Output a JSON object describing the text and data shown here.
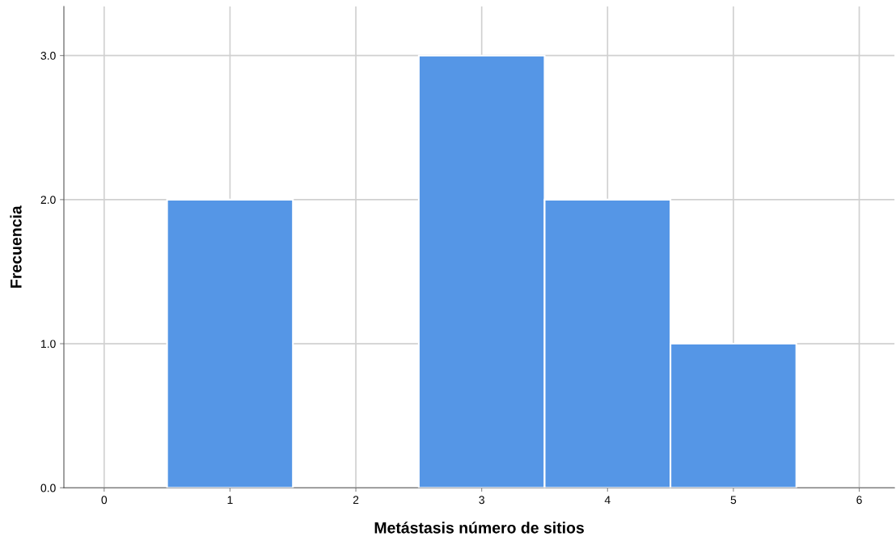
{
  "chart_data": {
    "type": "histogram",
    "xlabel": "Metástasis número de sitios",
    "ylabel": "Frecuencia",
    "bins": [
      0.5,
      1.5,
      2.5,
      3.5,
      4.5,
      5.5
    ],
    "values": [
      2,
      0,
      3,
      2,
      1
    ],
    "color": "#5596e6",
    "xlim": [
      -0.32,
      6.28
    ],
    "xticks": [
      0,
      1,
      2,
      3,
      4,
      5,
      6
    ],
    "ylim": [
      0,
      3.34
    ],
    "yticks": [
      {
        "value": 0,
        "label": "0.0"
      },
      {
        "value": 1,
        "label": "1.0"
      },
      {
        "value": 2,
        "label": "2.0"
      },
      {
        "value": 3,
        "label": "3.0"
      }
    ],
    "grid": true
  }
}
